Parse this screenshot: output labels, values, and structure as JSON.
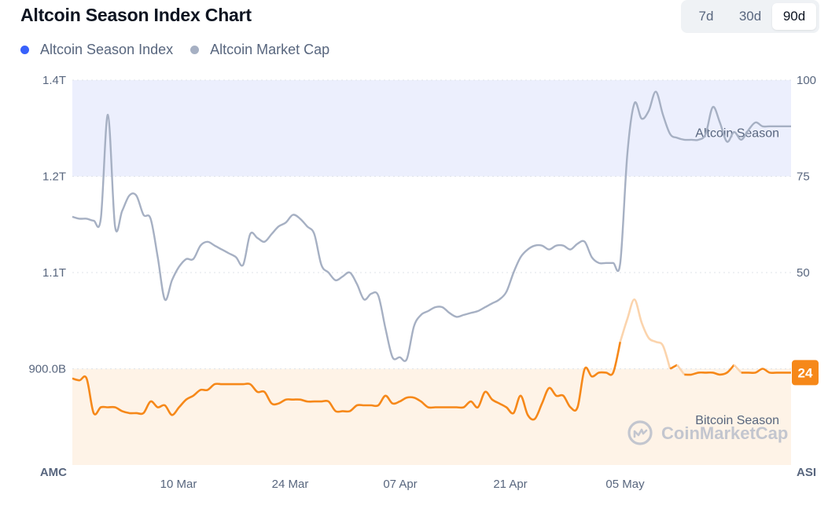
{
  "header": {
    "title": "Altcoin Season Index Chart",
    "ranges": [
      "7d",
      "30d",
      "90d"
    ],
    "active_range": "90d"
  },
  "legend": [
    {
      "label": "Altcoin Season Index",
      "color": "#3861fb"
    },
    {
      "label": "Altcoin Market Cap",
      "color": "#a6b0c3"
    }
  ],
  "chart_data": {
    "type": "line",
    "left_axis": {
      "ticks": [
        "1.4T",
        "1.2T",
        "1.1T",
        "900.0B"
      ],
      "label": "AMC"
    },
    "right_axis": {
      "ticks": [
        "100",
        "75",
        "50",
        "25"
      ],
      "label": "ASI",
      "ylim": [
        0,
        100
      ]
    },
    "x_ticks": [
      "10 Mar",
      "24 Mar",
      "07 Apr",
      "21 Apr",
      "05 May"
    ],
    "zones": {
      "altcoin_season": {
        "label": "Altcoin Season",
        "from": 75,
        "to": 100,
        "color": "#eceffd"
      },
      "bitcoin_season": {
        "label": "Bitcoin Season",
        "from": 0,
        "to": 25,
        "color": "#fef3e7"
      }
    },
    "current_value": "24",
    "series": [
      {
        "name": "Altcoin Season Index",
        "axis": "right",
        "color": "#f68819",
        "values": [
          22.5,
          22,
          22.5,
          13.5,
          15,
          15,
          15,
          14,
          13.5,
          13.5,
          13.5,
          16.5,
          15,
          15.5,
          13,
          15,
          17,
          18,
          19.5,
          19.5,
          21,
          21,
          21,
          21,
          21,
          21,
          19,
          19,
          16,
          16,
          17,
          17,
          17,
          16.5,
          16.5,
          16.5,
          16.5,
          14,
          14,
          14,
          15.5,
          15.5,
          15.5,
          15.5,
          18,
          16,
          16.5,
          17.5,
          17.5,
          16.5,
          15,
          15,
          15,
          15,
          15,
          15,
          16.5,
          15,
          19,
          17,
          16,
          15,
          13.5,
          18,
          13,
          12,
          16,
          20,
          18,
          18,
          15,
          15,
          25,
          23,
          24,
          24,
          24,
          32,
          38,
          43,
          37,
          33,
          32,
          31,
          25,
          26,
          23.5,
          23.5,
          24,
          24,
          24,
          23.5,
          24,
          26,
          24,
          24,
          24,
          25,
          24,
          24,
          24,
          24
        ]
      },
      {
        "name": "Altcoin Market Cap",
        "axis": "left",
        "values_scaled_0_100": [
          64.5,
          64,
          64,
          63.5,
          64,
          91,
          62,
          66,
          70,
          70,
          65,
          64,
          54,
          43,
          48,
          51.5,
          53.5,
          53.5,
          57,
          58,
          57,
          56,
          55,
          54,
          52,
          60,
          59,
          58,
          60,
          62,
          63,
          65,
          64,
          62,
          60,
          52,
          50,
          48,
          49,
          50,
          47,
          43,
          44.5,
          44,
          35.5,
          28,
          28,
          27.5,
          36,
          39,
          40,
          41,
          41,
          39.5,
          38.5,
          39,
          39.5,
          40,
          41,
          42,
          43,
          45,
          50,
          54,
          56,
          57,
          57,
          56,
          57,
          57,
          56,
          57.5,
          58,
          54,
          52.5,
          52.5,
          52.5,
          52.5,
          81,
          94,
          90,
          92,
          97,
          91,
          86,
          85,
          84.5,
          84.5,
          84.5,
          86,
          93,
          89,
          84,
          86.5,
          84.5,
          87,
          89,
          88,
          88,
          88,
          88,
          88
        ]
      }
    ]
  },
  "watermark": {
    "text": "CoinMarketCap"
  }
}
